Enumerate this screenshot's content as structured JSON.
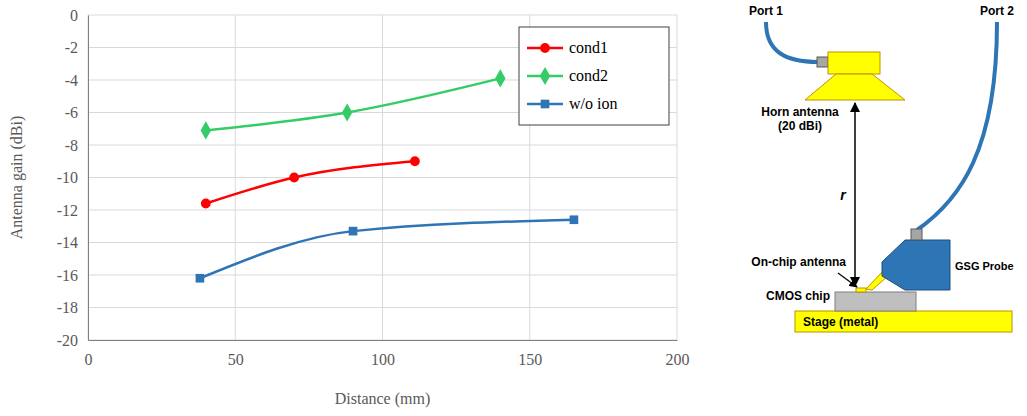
{
  "chart_data": {
    "type": "line",
    "x_label": "Distance (mm)",
    "y_label": "Antenna gain (dBi)",
    "xlim": [
      0,
      200
    ],
    "xticks": [
      0,
      50,
      100,
      150,
      200
    ],
    "ylim": [
      -20,
      0
    ],
    "yticks": [
      -20,
      -18,
      -16,
      -14,
      -12,
      -10,
      -8,
      -6,
      -4,
      -2,
      0
    ],
    "grid": true,
    "legend": "top-right",
    "series": [
      {
        "name": "cond1",
        "color": "#ff0000",
        "marker": "circle",
        "line_style": "smooth",
        "x": [
          40,
          70,
          111
        ],
        "values": [
          -11.6,
          -10,
          -9
        ]
      },
      {
        "name": "cond2",
        "color": "#33cc66",
        "marker": "diamond",
        "line_style": "smooth",
        "x": [
          40,
          88,
          140
        ],
        "values": [
          -7.1,
          -6,
          -3.9
        ]
      },
      {
        "name": "w/o ion",
        "color": "#2e75b6",
        "marker": "square",
        "line_style": "smooth",
        "x": [
          38,
          90,
          165
        ],
        "values": [
          -16.2,
          -13.3,
          -12.6
        ]
      }
    ]
  },
  "diagram": {
    "port1": "Port 1",
    "port2": "Port 2",
    "horn_antenna": [
      "Horn antenna",
      "(20 dBi)"
    ],
    "distance": "r",
    "on_chip_antenna": "On-chip antenna",
    "cmos_chip": "CMOS chip",
    "gsg_probe": "GSG Probe",
    "stage": "Stage (metal)"
  }
}
